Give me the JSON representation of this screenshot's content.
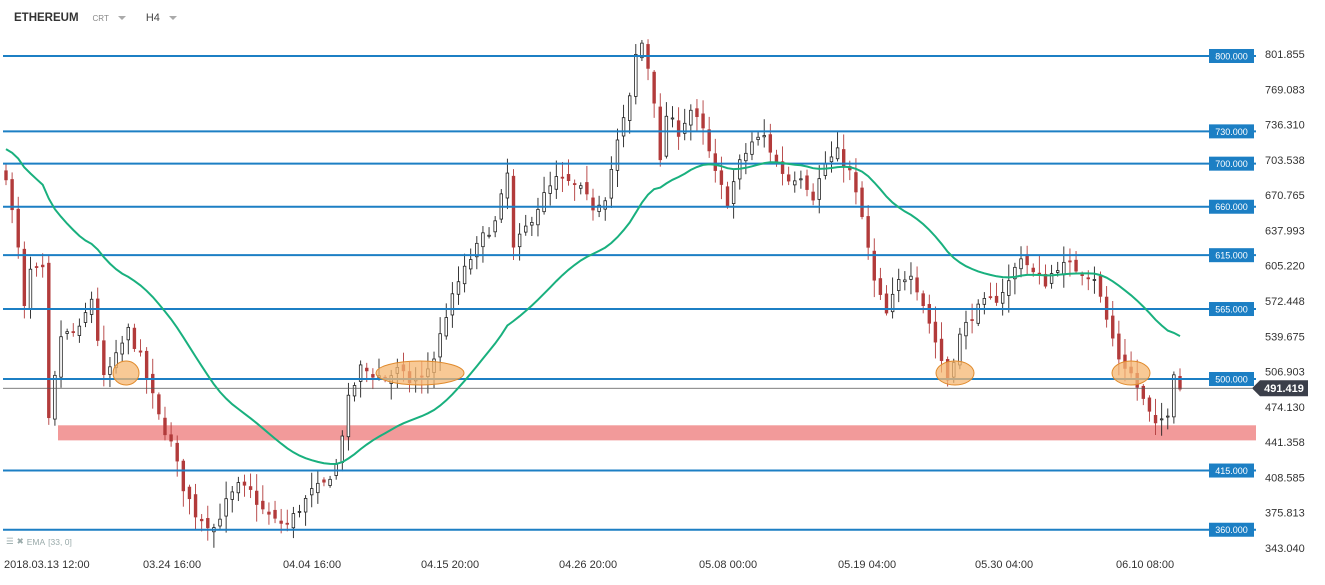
{
  "header": {
    "symbol": "ETHEREUM",
    "mode": "CRT",
    "timeframe": "H4"
  },
  "indicator": {
    "label": "EMA",
    "params": "[33, 0]"
  },
  "colors": {
    "level_line": "#1c7fc4",
    "level_badge": "#1c7fc4",
    "ema": "#19b07e",
    "support_zone": "#f29a9a",
    "circle_fill": "#f5b772",
    "candle_up": "#222222",
    "candle_down": "#b23b3b",
    "price_badge": "#3b3f4a"
  },
  "chart_data": {
    "type": "candlestick",
    "title": "ETHEREUM",
    "timeframe": "H4",
    "ylim": [
      343.04,
      823
    ],
    "y_ticks": [
      801.855,
      769.083,
      736.31,
      703.538,
      670.765,
      637.993,
      605.22,
      572.448,
      539.675,
      506.903,
      474.13,
      441.358,
      408.585,
      375.813,
      343.04
    ],
    "x_tick_labels": [
      "2018.03.13  12:00",
      "03.24  16:00",
      "04.04  16:00",
      "04.15  20:00",
      "04.26  20:00",
      "05.08  00:00",
      "05.19  04:00",
      "05.30  04:00",
      "06.10  08:00"
    ],
    "horizontal_levels": [
      800.0,
      730.0,
      700.0,
      660.0,
      615.0,
      565.0,
      500.0,
      415.0,
      360.0
    ],
    "horizontal_level_labels": [
      "800.000",
      "730.000",
      "700.000",
      "660.000",
      "615.000",
      "565.000",
      "500.000",
      "415.000",
      "360.000"
    ],
    "current_price": 491.419,
    "current_price_label": "491.419",
    "support_zone": [
      443,
      457
    ],
    "ema_period": 33,
    "close_path": [
      [
        0,
        690
      ],
      [
        2,
        620
      ],
      [
        3,
        565
      ],
      [
        4,
        600
      ],
      [
        6,
        600
      ],
      [
        7,
        460
      ],
      [
        9,
        540
      ],
      [
        12,
        545
      ],
      [
        14,
        575
      ],
      [
        16,
        500
      ],
      [
        18,
        520
      ],
      [
        20,
        545
      ],
      [
        22,
        520
      ],
      [
        25,
        465
      ],
      [
        27,
        440
      ],
      [
        29,
        400
      ],
      [
        31,
        375
      ],
      [
        34,
        362
      ],
      [
        36,
        385
      ],
      [
        38,
        400
      ],
      [
        40,
        395
      ],
      [
        42,
        378
      ],
      [
        44,
        368
      ],
      [
        46,
        365
      ],
      [
        48,
        380
      ],
      [
        50,
        395
      ],
      [
        52,
        402
      ],
      [
        54,
        420
      ],
      [
        56,
        480
      ],
      [
        58,
        510
      ],
      [
        60,
        505
      ],
      [
        62,
        500
      ],
      [
        64,
        508
      ],
      [
        66,
        498
      ],
      [
        68,
        500
      ],
      [
        70,
        520
      ],
      [
        72,
        560
      ],
      [
        74,
        590
      ],
      [
        76,
        612
      ],
      [
        78,
        632
      ],
      [
        80,
        645
      ],
      [
        82,
        690
      ],
      [
        83,
        620
      ],
      [
        84,
        630
      ],
      [
        86,
        650
      ],
      [
        88,
        670
      ],
      [
        90,
        685
      ],
      [
        92,
        682
      ],
      [
        94,
        675
      ],
      [
        96,
        660
      ],
      [
        98,
        670
      ],
      [
        100,
        720
      ],
      [
        102,
        760
      ],
      [
        103,
        800
      ],
      [
        104,
        812
      ],
      [
        105,
        790
      ],
      [
        106,
        760
      ],
      [
        107,
        700
      ],
      [
        108,
        745
      ],
      [
        110,
        730
      ],
      [
        112,
        750
      ],
      [
        114,
        730
      ],
      [
        116,
        690
      ],
      [
        118,
        665
      ],
      [
        120,
        700
      ],
      [
        122,
        720
      ],
      [
        124,
        725
      ],
      [
        126,
        700
      ],
      [
        128,
        685
      ],
      [
        130,
        690
      ],
      [
        132,
        670
      ],
      [
        134,
        700
      ],
      [
        136,
        710
      ],
      [
        138,
        692
      ],
      [
        140,
        650
      ],
      [
        142,
        590
      ],
      [
        144,
        560
      ],
      [
        146,
        590
      ],
      [
        148,
        600
      ],
      [
        150,
        570
      ],
      [
        152,
        535
      ],
      [
        154,
        500
      ],
      [
        156,
        540
      ],
      [
        158,
        560
      ],
      [
        160,
        570
      ],
      [
        162,
        575
      ],
      [
        164,
        590
      ],
      [
        166,
        615
      ],
      [
        168,
        598
      ],
      [
        170,
        590
      ],
      [
        172,
        605
      ],
      [
        174,
        605
      ],
      [
        176,
        600
      ],
      [
        178,
        595
      ],
      [
        180,
        555
      ],
      [
        182,
        520
      ],
      [
        184,
        505
      ],
      [
        186,
        480
      ],
      [
        188,
        455
      ],
      [
        190,
        470
      ],
      [
        191,
        508
      ],
      [
        192,
        492
      ]
    ]
  }
}
